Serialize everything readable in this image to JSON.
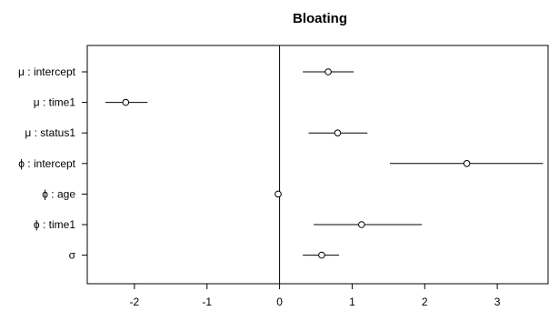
{
  "chart_data": {
    "type": "forest",
    "title": "Bloating",
    "xlim": [
      -2.65,
      3.7
    ],
    "x_ticks": [
      -2,
      -1,
      0,
      1,
      2,
      3
    ],
    "x_tick_labels": [
      "-2",
      "-1",
      "0",
      "1",
      "2",
      "3"
    ],
    "reference_line_x": 0,
    "grid": false,
    "rows": [
      {
        "label": "μ : intercept",
        "estimate": 0.67,
        "lower": 0.32,
        "upper": 1.02
      },
      {
        "label": "μ : time1",
        "estimate": -2.12,
        "lower": -2.4,
        "upper": -1.82
      },
      {
        "label": "μ : status1",
        "estimate": 0.8,
        "lower": 0.4,
        "upper": 1.21
      },
      {
        "label": "ϕ : intercept",
        "estimate": 2.58,
        "lower": 1.52,
        "upper": 3.63
      },
      {
        "label": "ϕ : age",
        "estimate": -0.02,
        "lower": -0.04,
        "upper": 0.0
      },
      {
        "label": "ϕ : time1",
        "estimate": 1.13,
        "lower": 0.47,
        "upper": 1.96
      },
      {
        "label": "σ",
        "estimate": 0.58,
        "lower": 0.32,
        "upper": 0.82
      }
    ]
  }
}
